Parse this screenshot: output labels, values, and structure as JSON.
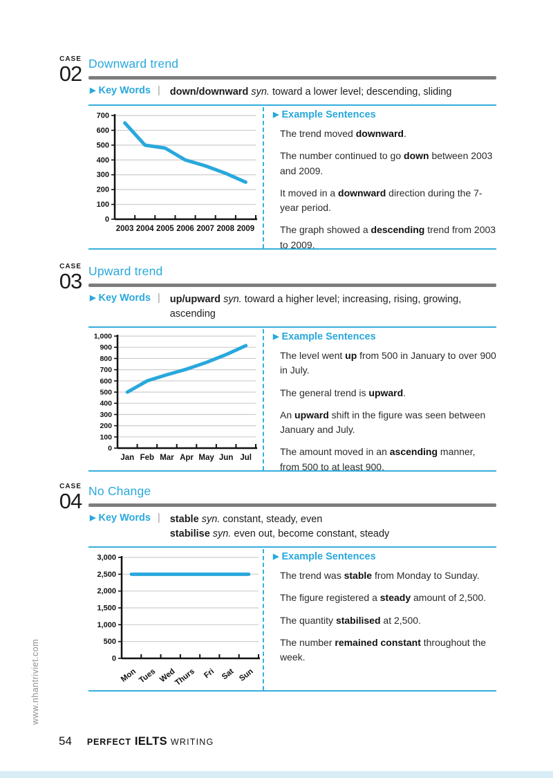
{
  "accent": "#29a8dc",
  "gray_bar_color": "#7d7d7d",
  "sidebar_url": "www.nhantriviet.com",
  "footer": {
    "page_number": "54",
    "brand_perfect": "PERFECT",
    "brand_ielts": "IELTS",
    "brand_writing": "WRITING"
  },
  "sections": [
    {
      "case_label": "CASE",
      "case_number": "02",
      "title": "Downward trend",
      "keywords_label": "Key Words",
      "keywords_lines": [
        "**down/downward** *syn.* toward a lower level; descending, sliding"
      ],
      "examples_header": "Example Sentences",
      "sentences": [
        "The trend moved **downward**.",
        "The number continued to go **down** between 2003 and 2009.",
        "It moved in a **downward** direction during the 7-year period.",
        "The graph showed a **descending** trend from 2003 to 2009."
      ]
    },
    {
      "case_label": "CASE",
      "case_number": "03",
      "title": "Upward trend",
      "keywords_label": "Key Words",
      "keywords_lines": [
        "**up/upward** *syn.* toward a higher level; increasing, rising, growing,",
        "ascending"
      ],
      "examples_header": "Example Sentences",
      "sentences": [
        "The level went **up** from 500 in January to over 900 in July.",
        "The general trend is **upward**.",
        "An **upward** shift in the figure was seen between January and July.",
        "The amount moved in an **ascending** manner, from 500 to at least 900."
      ]
    },
    {
      "case_label": "CASE",
      "case_number": "04",
      "title": "No Change",
      "keywords_label": "Key Words",
      "keywords_lines": [
        "**stable** *syn.* constant, steady, even",
        "**stabilise** *syn.* even out, become constant, steady"
      ],
      "examples_header": "Example Sentences",
      "sentences": [
        "The trend was **stable** from Monday to Sunday.",
        "The figure registered a **steady** amount of 2,500.",
        "The quantity **stabilised** at 2,500.",
        "The number **remained constant** throughout the week."
      ]
    }
  ],
  "chart_data": [
    {
      "type": "line",
      "title": "Downward trend example line graph",
      "categories": [
        "2003",
        "2004",
        "2005",
        "2006",
        "2007",
        "2008",
        "2009"
      ],
      "values": [
        650,
        500,
        480,
        400,
        360,
        310,
        250
      ],
      "xlabel": "",
      "ylabel": "",
      "ylim": [
        0,
        700
      ],
      "ytick_labels": [
        "0",
        "100",
        "200",
        "300",
        "400",
        "500",
        "600",
        "700"
      ],
      "grid": "horizontal",
      "legend": "none",
      "rotate_x_labels": false,
      "line_color": "#29a8dc"
    },
    {
      "type": "line",
      "title": "Upward trend example line graph",
      "categories": [
        "Jan",
        "Feb",
        "Mar",
        "Apr",
        "May",
        "Jun",
        "Jul"
      ],
      "values": [
        500,
        600,
        655,
        705,
        765,
        835,
        915
      ],
      "xlabel": "",
      "ylabel": "",
      "ylim": [
        0,
        1000
      ],
      "ytick_labels": [
        "0",
        "100",
        "200",
        "300",
        "400",
        "500",
        "600",
        "700",
        "800",
        "900",
        "1,000"
      ],
      "grid": "horizontal",
      "legend": "none",
      "rotate_x_labels": false,
      "line_color": "#29a8dc"
    },
    {
      "type": "line",
      "title": "No change example line graph",
      "categories": [
        "Mon",
        "Tues",
        "Wed",
        "Thurs",
        "Fri",
        "Sat",
        "Sun"
      ],
      "values": [
        2500,
        2500,
        2500,
        2500,
        2500,
        2500,
        2500
      ],
      "xlabel": "",
      "ylabel": "",
      "ylim": [
        0,
        3000
      ],
      "ytick_labels": [
        "0",
        "500",
        "1,000",
        "1,500",
        "2,000",
        "2,500",
        "3,000"
      ],
      "grid": "horizontal",
      "legend": "none",
      "rotate_x_labels": true,
      "line_color": "#29a8dc"
    }
  ]
}
